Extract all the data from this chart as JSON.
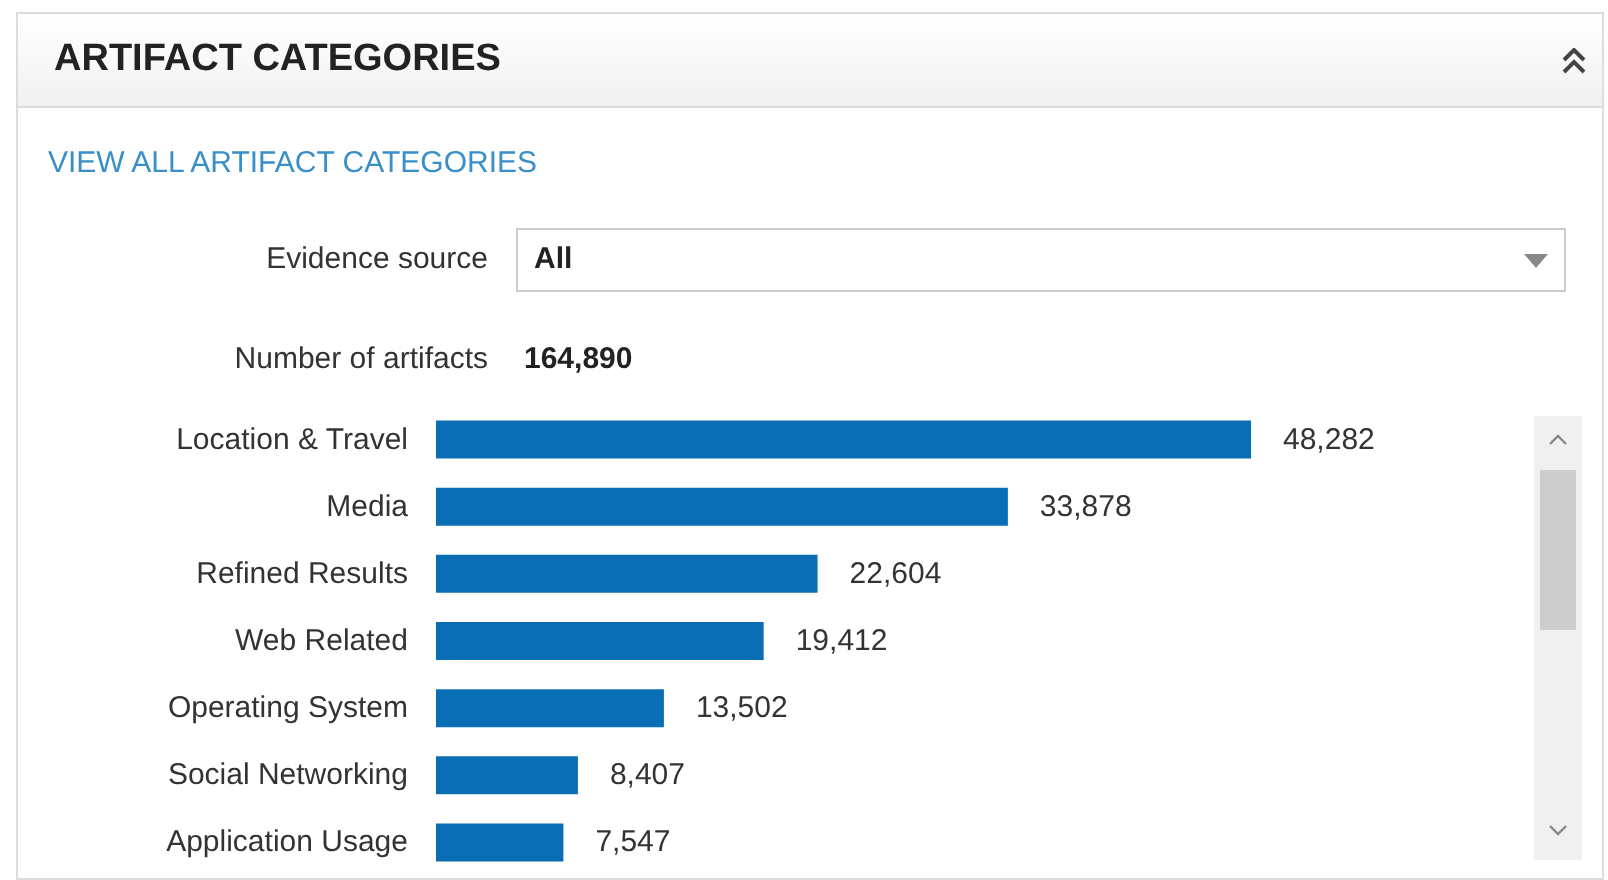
{
  "chart_data": {
    "type": "bar",
    "orientation": "horizontal",
    "title": "ARTIFACT CATEGORIES",
    "annotations": [
      "VIEW ALL ARTIFACT CATEGORIES",
      "Evidence source",
      "All",
      "Number of artifacts",
      "164,890"
    ],
    "categories": [
      "Location & Travel",
      "Media",
      "Refined Results",
      "Web Related",
      "Operating System",
      "Social Networking",
      "Application Usage"
    ],
    "values": [
      48282,
      33878,
      22604,
      19412,
      13502,
      8407,
      7547
    ],
    "value_labels": [
      "48,282",
      "33,878",
      "22,604",
      "19,412",
      "13,502",
      "8,407",
      "7,547"
    ],
    "color": "#0a6eb4"
  }
}
